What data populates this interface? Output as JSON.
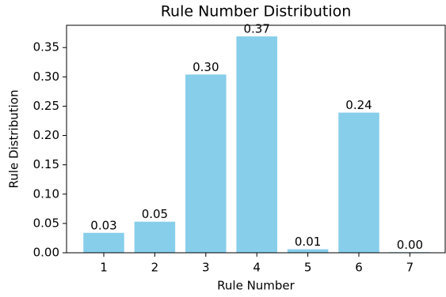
{
  "chart_data": {
    "type": "bar",
    "title": "Rule Number Distribution",
    "x_label": "Rule Number",
    "y_label": "Rule Distribution",
    "categories": [
      "1",
      "2",
      "3",
      "4",
      "5",
      "6",
      "7"
    ],
    "values": [
      0.034,
      0.053,
      0.304,
      0.369,
      0.006,
      0.239,
      0.001
    ],
    "value_labels": [
      "0.03",
      "0.05",
      "0.30",
      "0.37",
      "0.01",
      "0.24",
      "0.00"
    ],
    "color": "#87ceeb",
    "ylim": [
      0,
      0.388
    ],
    "yticks": [
      {
        "value": 0,
        "label": "0.00"
      },
      {
        "value": 0.05,
        "label": "0.05"
      },
      {
        "value": 0.1,
        "label": "0.10"
      },
      {
        "value": 0.15,
        "label": "0.15"
      },
      {
        "value": 0.2,
        "label": "0.20"
      },
      {
        "value": 0.25,
        "label": "0.25"
      },
      {
        "value": 0.3,
        "label": "0.30"
      },
      {
        "value": 0.35,
        "label": "0.35"
      }
    ],
    "grid": false
  }
}
